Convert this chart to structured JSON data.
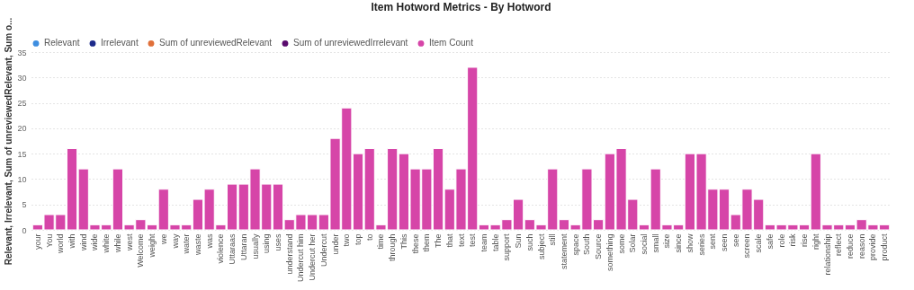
{
  "chart_data": {
    "type": "bar",
    "title": "Item Hotword Metrics - By Hotword",
    "ylabel": "Relevant, Irrelevant, Sum of unreviewedRelevant, Sum o...",
    "categories": [
      "your",
      "You",
      "world",
      "with",
      "wind",
      "wide",
      "white",
      "while",
      "west",
      "Welcome",
      "weight",
      "we",
      "way",
      "water",
      "waste",
      "was",
      "violence",
      "Uttaraas",
      "Uttaran",
      "usually",
      "using",
      "uses",
      "understand",
      "Undercut him",
      "Undercut her",
      "Undercut",
      "under",
      "two",
      "top",
      "to",
      "time",
      "through",
      "This",
      "these",
      "them",
      "The",
      "that",
      "text",
      "test",
      "team",
      "table",
      "support",
      "Sun",
      "such",
      "subject",
      "still",
      "statement",
      "space",
      "South",
      "Source",
      "something",
      "some",
      "Solar",
      "social",
      "small",
      "size",
      "since",
      "show",
      "series",
      "sent",
      "seen",
      "see",
      "screen",
      "scale",
      "safe",
      "role",
      "risk",
      "rise",
      "right",
      "relationship",
      "reflect",
      "reduce",
      "reason",
      "provide",
      "product"
    ],
    "series": [
      {
        "name": "Relevant",
        "color": "#3e8ee0",
        "values": [
          null,
          null,
          null,
          null,
          null,
          null,
          null,
          null,
          null,
          null,
          null,
          null,
          null,
          null,
          null,
          null,
          null,
          null,
          null,
          null,
          null,
          null,
          null,
          null,
          null,
          null,
          null,
          null,
          null,
          null,
          null,
          null,
          null,
          null,
          null,
          null,
          null,
          null,
          null,
          null,
          null,
          null,
          null,
          null,
          null,
          null,
          null,
          null,
          null,
          null,
          null,
          null,
          null,
          null,
          null,
          null,
          null,
          null,
          null,
          null,
          null,
          null,
          null,
          null,
          null,
          null,
          null,
          null,
          null,
          null,
          null,
          null,
          null,
          null,
          null
        ]
      },
      {
        "name": "Irrelevant",
        "color": "#1c2a8a",
        "values": [
          null,
          null,
          null,
          null,
          null,
          null,
          null,
          null,
          null,
          null,
          null,
          null,
          null,
          null,
          null,
          null,
          null,
          null,
          null,
          null,
          null,
          null,
          null,
          null,
          null,
          null,
          null,
          null,
          null,
          null,
          null,
          null,
          null,
          null,
          null,
          null,
          null,
          null,
          null,
          null,
          null,
          null,
          null,
          null,
          null,
          null,
          null,
          null,
          null,
          null,
          null,
          null,
          null,
          null,
          null,
          null,
          null,
          null,
          null,
          null,
          null,
          null,
          null,
          null,
          null,
          null,
          null,
          null,
          null,
          null,
          null,
          null,
          null,
          null,
          null
        ]
      },
      {
        "name": "Sum of unreviewedRelevant",
        "color": "#e0703a",
        "values": [
          null,
          null,
          null,
          null,
          null,
          null,
          null,
          null,
          null,
          null,
          null,
          null,
          null,
          null,
          null,
          null,
          null,
          null,
          null,
          null,
          null,
          null,
          null,
          null,
          null,
          null,
          null,
          null,
          null,
          null,
          null,
          null,
          null,
          null,
          null,
          null,
          null,
          null,
          null,
          null,
          null,
          null,
          null,
          null,
          null,
          null,
          null,
          null,
          null,
          null,
          null,
          null,
          null,
          null,
          null,
          null,
          null,
          null,
          null,
          null,
          null,
          null,
          null,
          null,
          null,
          null,
          null,
          null,
          null,
          null,
          null,
          null,
          null,
          null,
          null
        ]
      },
      {
        "name": "Sum of unreviewedIrrelevant",
        "color": "#5a0b6e",
        "values": [
          null,
          null,
          null,
          null,
          null,
          null,
          null,
          null,
          null,
          null,
          null,
          null,
          null,
          null,
          null,
          null,
          null,
          null,
          null,
          null,
          null,
          null,
          null,
          null,
          null,
          null,
          null,
          null,
          null,
          null,
          null,
          null,
          null,
          null,
          null,
          null,
          null,
          null,
          null,
          null,
          null,
          null,
          null,
          null,
          null,
          null,
          null,
          null,
          null,
          null,
          null,
          null,
          null,
          null,
          null,
          null,
          null,
          null,
          null,
          null,
          null,
          null,
          null,
          null,
          null,
          null,
          null,
          null,
          null,
          null,
          null,
          null,
          null,
          null,
          null
        ]
      },
      {
        "name": "Item Count",
        "color": "#d645a8",
        "values": [
          1,
          3,
          3,
          16,
          12,
          1,
          1,
          12,
          1,
          2,
          1,
          8,
          1,
          1,
          6,
          8,
          1,
          9,
          9,
          12,
          9,
          9,
          2,
          3,
          3,
          3,
          18,
          24,
          15,
          16,
          1,
          16,
          15,
          12,
          12,
          16,
          8,
          12,
          32,
          1,
          1,
          2,
          6,
          2,
          1,
          12,
          2,
          1,
          12,
          2,
          15,
          16,
          6,
          1,
          12,
          1,
          1,
          15,
          15,
          8,
          8,
          3,
          8,
          6,
          1,
          1,
          1,
          1,
          15,
          1,
          1,
          1,
          2,
          1,
          1
        ]
      }
    ],
    "ylim": [
      0,
      35
    ],
    "yticks": [
      0,
      5,
      10,
      15,
      20,
      25,
      30,
      35
    ],
    "grid": "y",
    "legend": "top left"
  }
}
